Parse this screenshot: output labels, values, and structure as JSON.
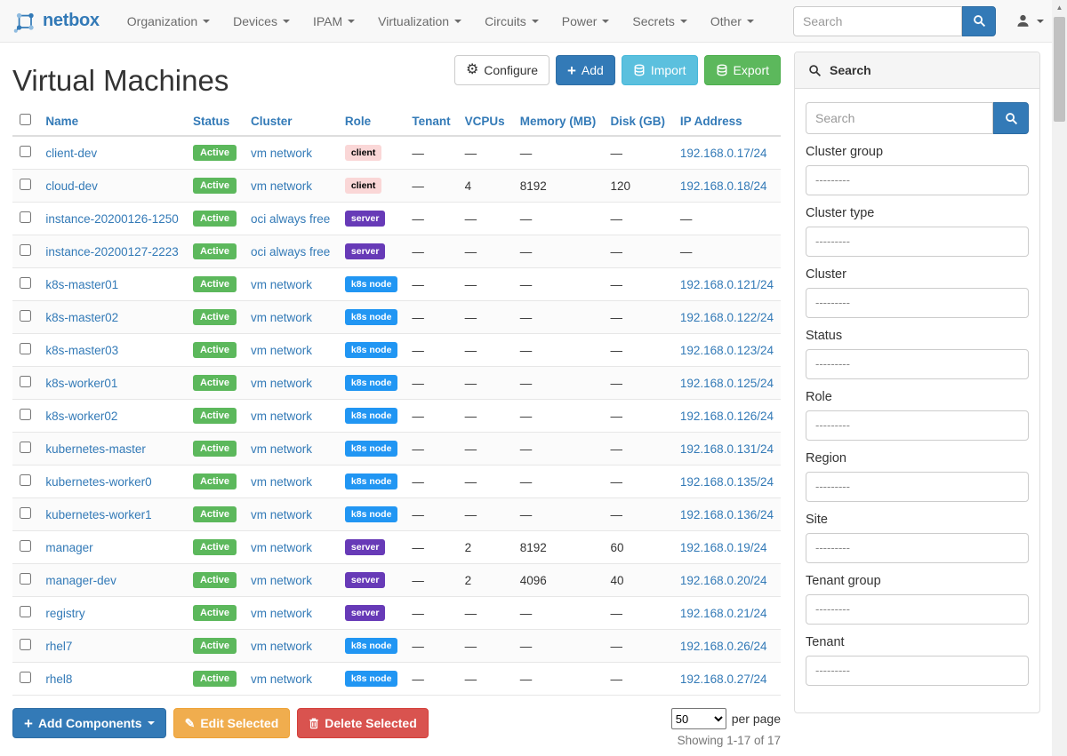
{
  "navbar": {
    "brand": "netbox",
    "menus": [
      "Organization",
      "Devices",
      "IPAM",
      "Virtualization",
      "Circuits",
      "Power",
      "Secrets",
      "Other"
    ],
    "search_placeholder": "Search"
  },
  "page": {
    "title": "Virtual Machines"
  },
  "toolbar": {
    "configure": "Configure",
    "add": "Add",
    "import": "Import",
    "export": "Export"
  },
  "table": {
    "headers": [
      "Name",
      "Status",
      "Cluster",
      "Role",
      "Tenant",
      "VCPUs",
      "Memory (MB)",
      "Disk (GB)",
      "IP Address"
    ],
    "rows": [
      {
        "name": "client-dev",
        "status": "Active",
        "cluster": "vm network",
        "role": "client",
        "role_bg": "#fad7d7",
        "role_fg": "#000000",
        "tenant": "—",
        "vcpus": "—",
        "memory": "—",
        "disk": "—",
        "ip": "192.168.0.17/24"
      },
      {
        "name": "cloud-dev",
        "status": "Active",
        "cluster": "vm network",
        "role": "client",
        "role_bg": "#fad7d7",
        "role_fg": "#000000",
        "tenant": "—",
        "vcpus": "4",
        "memory": "8192",
        "disk": "120",
        "ip": "192.168.0.18/24"
      },
      {
        "name": "instance-20200126-1250",
        "status": "Active",
        "cluster": "oci always free",
        "role": "server",
        "role_bg": "#673ab7",
        "role_fg": "#ffffff",
        "tenant": "—",
        "vcpus": "—",
        "memory": "—",
        "disk": "—",
        "ip": "—"
      },
      {
        "name": "instance-20200127-2223",
        "status": "Active",
        "cluster": "oci always free",
        "role": "server",
        "role_bg": "#673ab7",
        "role_fg": "#ffffff",
        "tenant": "—",
        "vcpus": "—",
        "memory": "—",
        "disk": "—",
        "ip": "—"
      },
      {
        "name": "k8s-master01",
        "status": "Active",
        "cluster": "vm network",
        "role": "k8s node",
        "role_bg": "#2196f3",
        "role_fg": "#ffffff",
        "tenant": "—",
        "vcpus": "—",
        "memory": "—",
        "disk": "—",
        "ip": "192.168.0.121/24"
      },
      {
        "name": "k8s-master02",
        "status": "Active",
        "cluster": "vm network",
        "role": "k8s node",
        "role_bg": "#2196f3",
        "role_fg": "#ffffff",
        "tenant": "—",
        "vcpus": "—",
        "memory": "—",
        "disk": "—",
        "ip": "192.168.0.122/24"
      },
      {
        "name": "k8s-master03",
        "status": "Active",
        "cluster": "vm network",
        "role": "k8s node",
        "role_bg": "#2196f3",
        "role_fg": "#ffffff",
        "tenant": "—",
        "vcpus": "—",
        "memory": "—",
        "disk": "—",
        "ip": "192.168.0.123/24"
      },
      {
        "name": "k8s-worker01",
        "status": "Active",
        "cluster": "vm network",
        "role": "k8s node",
        "role_bg": "#2196f3",
        "role_fg": "#ffffff",
        "tenant": "—",
        "vcpus": "—",
        "memory": "—",
        "disk": "—",
        "ip": "192.168.0.125/24"
      },
      {
        "name": "k8s-worker02",
        "status": "Active",
        "cluster": "vm network",
        "role": "k8s node",
        "role_bg": "#2196f3",
        "role_fg": "#ffffff",
        "tenant": "—",
        "vcpus": "—",
        "memory": "—",
        "disk": "—",
        "ip": "192.168.0.126/24"
      },
      {
        "name": "kubernetes-master",
        "status": "Active",
        "cluster": "vm network",
        "role": "k8s node",
        "role_bg": "#2196f3",
        "role_fg": "#ffffff",
        "tenant": "—",
        "vcpus": "—",
        "memory": "—",
        "disk": "—",
        "ip": "192.168.0.131/24"
      },
      {
        "name": "kubernetes-worker0",
        "status": "Active",
        "cluster": "vm network",
        "role": "k8s node",
        "role_bg": "#2196f3",
        "role_fg": "#ffffff",
        "tenant": "—",
        "vcpus": "—",
        "memory": "—",
        "disk": "—",
        "ip": "192.168.0.135/24"
      },
      {
        "name": "kubernetes-worker1",
        "status": "Active",
        "cluster": "vm network",
        "role": "k8s node",
        "role_bg": "#2196f3",
        "role_fg": "#ffffff",
        "tenant": "—",
        "vcpus": "—",
        "memory": "—",
        "disk": "—",
        "ip": "192.168.0.136/24"
      },
      {
        "name": "manager",
        "status": "Active",
        "cluster": "vm network",
        "role": "server",
        "role_bg": "#673ab7",
        "role_fg": "#ffffff",
        "tenant": "—",
        "vcpus": "2",
        "memory": "8192",
        "disk": "60",
        "ip": "192.168.0.19/24"
      },
      {
        "name": "manager-dev",
        "status": "Active",
        "cluster": "vm network",
        "role": "server",
        "role_bg": "#673ab7",
        "role_fg": "#ffffff",
        "tenant": "—",
        "vcpus": "2",
        "memory": "4096",
        "disk": "40",
        "ip": "192.168.0.20/24"
      },
      {
        "name": "registry",
        "status": "Active",
        "cluster": "vm network",
        "role": "server",
        "role_bg": "#673ab7",
        "role_fg": "#ffffff",
        "tenant": "—",
        "vcpus": "—",
        "memory": "—",
        "disk": "—",
        "ip": "192.168.0.21/24"
      },
      {
        "name": "rhel7",
        "status": "Active",
        "cluster": "vm network",
        "role": "k8s node",
        "role_bg": "#2196f3",
        "role_fg": "#ffffff",
        "tenant": "—",
        "vcpus": "—",
        "memory": "—",
        "disk": "—",
        "ip": "192.168.0.26/24"
      },
      {
        "name": "rhel8",
        "status": "Active",
        "cluster": "vm network",
        "role": "k8s node",
        "role_bg": "#2196f3",
        "role_fg": "#ffffff",
        "tenant": "—",
        "vcpus": "—",
        "memory": "—",
        "disk": "—",
        "ip": "192.168.0.27/24"
      }
    ]
  },
  "footer": {
    "add_components": "Add Components",
    "edit_selected": "Edit Selected",
    "delete_selected": "Delete Selected",
    "per_page_value": "50",
    "per_page_suffix": "per page",
    "showing": "Showing 1-17 of 17"
  },
  "sidebar": {
    "title": "Search",
    "search_placeholder": "Search",
    "filters": [
      {
        "label": "Cluster group",
        "value": "---------"
      },
      {
        "label": "Cluster type",
        "value": "---------"
      },
      {
        "label": "Cluster",
        "value": "---------"
      },
      {
        "label": "Status",
        "value": "---------"
      },
      {
        "label": "Role",
        "value": "---------"
      },
      {
        "label": "Region",
        "value": "---------"
      },
      {
        "label": "Site",
        "value": "---------"
      },
      {
        "label": "Tenant group",
        "value": "---------"
      },
      {
        "label": "Tenant",
        "value": "---------"
      }
    ]
  },
  "colors": {
    "accent": "#337ab7",
    "status_active": "#5cb85c",
    "import": "#5bc0de",
    "export": "#5cb85c",
    "edit": "#f0ad4e",
    "delete": "#d9534f"
  }
}
